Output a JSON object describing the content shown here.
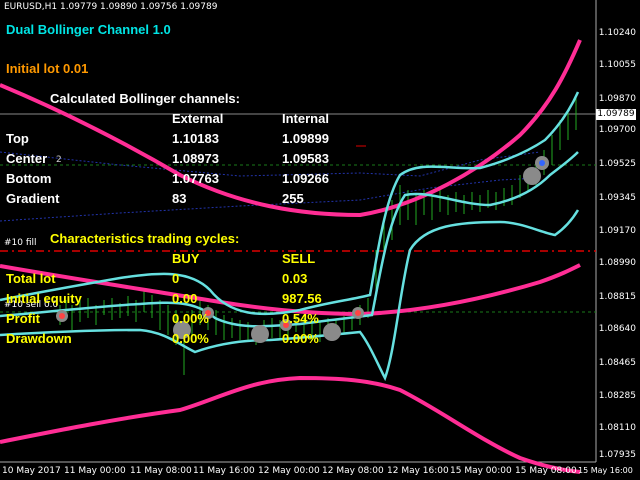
{
  "header": {
    "symbol": "EURUSD,H1  1.09779 1.09890 1.09756 1.09789"
  },
  "indicator": {
    "name": "Dual Bollinger Channel 1.0",
    "initial_lot": "Initial lot 0.01",
    "calc_title": "Calculated Bollinger channels:",
    "col_external": "External",
    "col_internal": "Internal",
    "rows": [
      {
        "label": "Top",
        "external": "1.10183",
        "internal": "1.09899"
      },
      {
        "label": "Center",
        "external": "1.08973",
        "internal": "1.09583"
      },
      {
        "label": "Bottom",
        "external": "1.07763",
        "internal": "1.09266"
      },
      {
        "label": "Gradient",
        "external": "83",
        "internal": "255"
      }
    ],
    "cycles_title": "Characteristics trading cycles:",
    "col_buy": "BUY",
    "col_sell": "SELL",
    "cycle_rows": [
      {
        "label": "Total lot",
        "buy": "0",
        "sell": "0.03"
      },
      {
        "label": "Initial equity",
        "buy": "0.00",
        "sell": "987.56"
      },
      {
        "label": "Profit",
        "buy": "0.00%",
        "sell": "0.54%"
      },
      {
        "label": "Drawdown",
        "buy": "0.00%",
        "sell": "0.00%"
      }
    ]
  },
  "chart_labels": {
    "sell_tag_1": "#10 sell 0.0",
    "sell_tag_2": "#10 fill",
    "center_tag": "2"
  },
  "price_axis": {
    "ticks": [
      "1.10240",
      "1.10055",
      "1.09870",
      "1.09700",
      "1.09525",
      "1.09345",
      "1.09170",
      "1.08990",
      "1.08815",
      "1.08640",
      "1.08465",
      "1.08285",
      "1.08110",
      "1.07935"
    ],
    "current_price": "1.09789"
  },
  "time_axis": {
    "ticks": [
      "10 May 2017",
      "11 May 00:00",
      "11 May 08:00",
      "11 May 16:00",
      "12 May 00:00",
      "12 May 08:00",
      "12 May 16:00",
      "15 May 00:00",
      "15 May 08:00",
      "15 May 16:00"
    ]
  },
  "colors": {
    "external_band": "#ff2d95",
    "internal_band": "#66e0e0",
    "price_line": "#2233aa",
    "candles": "#22aa22",
    "sell_level": "#dd0000",
    "marker_ring": "#8a8a8a"
  }
}
